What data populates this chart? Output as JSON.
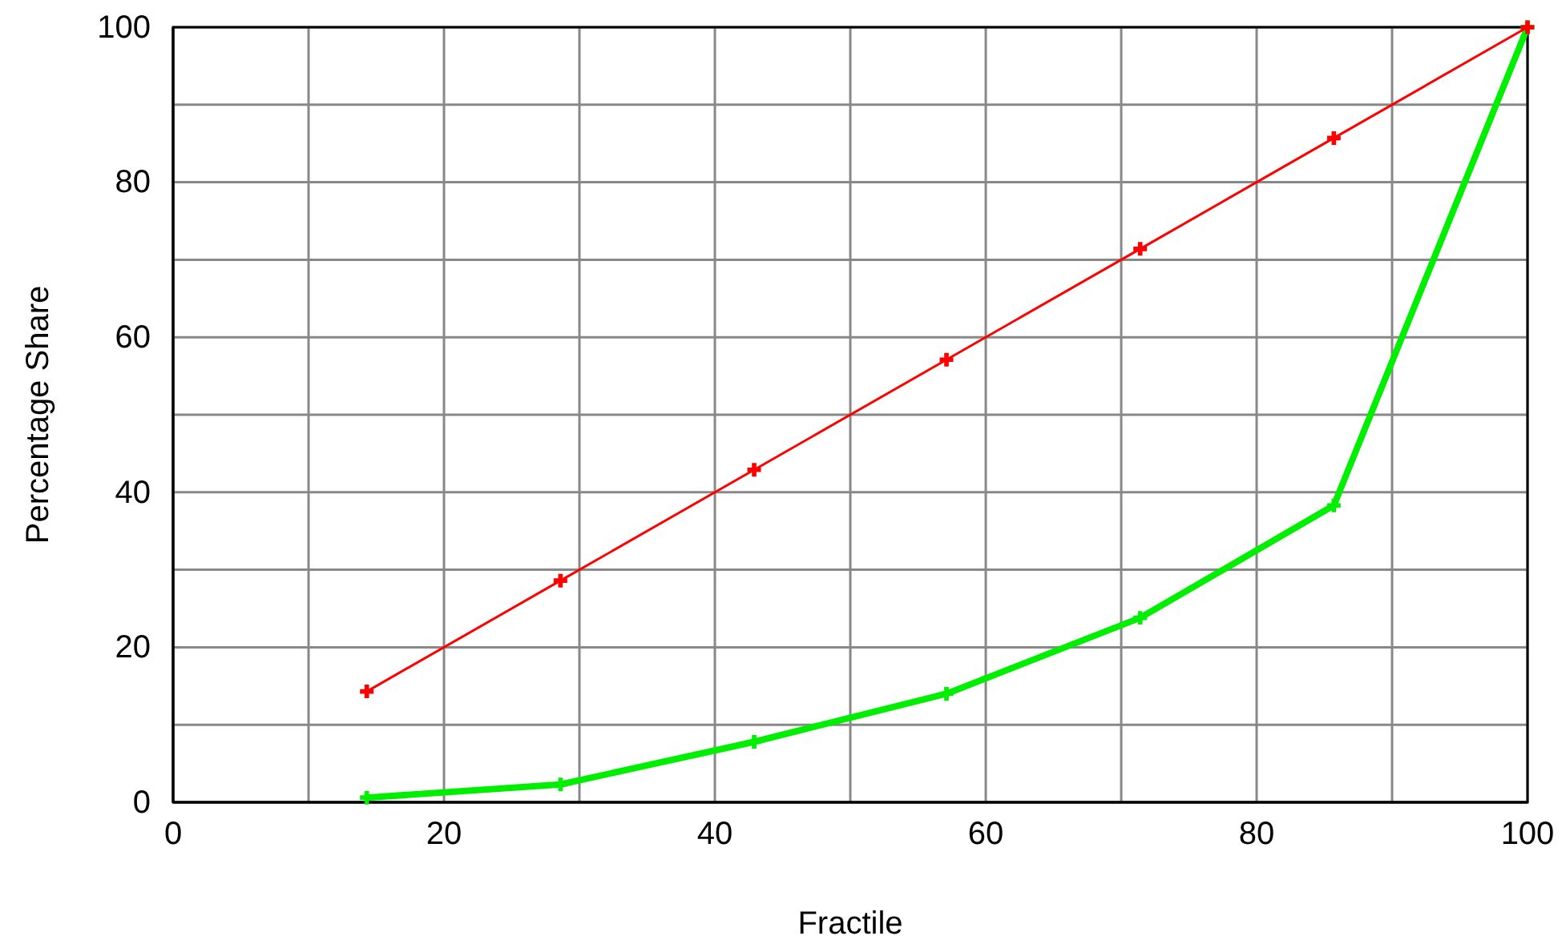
{
  "chart_data": {
    "type": "line",
    "xlabel": "Fractile",
    "ylabel": "Percentage Share",
    "xlim": [
      0,
      100
    ],
    "ylim": [
      0,
      100
    ],
    "xticks": [
      0,
      {
        "value": 10,
        "label": null
      },
      20,
      {
        "value": 30,
        "label": null
      },
      40,
      {
        "value": 50,
        "label": null
      },
      60,
      {
        "value": 70,
        "label": null
      },
      80,
      {
        "value": 90,
        "label": null
      },
      100
    ],
    "yticks": [
      0,
      {
        "value": 10,
        "label": null
      },
      20,
      {
        "value": 30,
        "label": null
      },
      40,
      {
        "value": 50,
        "label": null
      },
      60,
      {
        "value": 70,
        "label": null
      },
      80,
      {
        "value": 90,
        "label": null
      },
      100
    ],
    "grid": true,
    "marker": "cross",
    "line_style": "solid",
    "x": [
      14.3,
      28.6,
      42.9,
      57.1,
      71.4,
      85.7,
      100
    ],
    "series": [
      {
        "color": "#ff0000",
        "values": [
          14.3,
          28.6,
          42.9,
          57.1,
          71.4,
          85.7,
          100
        ]
      },
      {
        "color": "#00ee00",
        "values": [
          0.6,
          2.3,
          7.8,
          14,
          23.8,
          38.3,
          100
        ]
      }
    ]
  }
}
